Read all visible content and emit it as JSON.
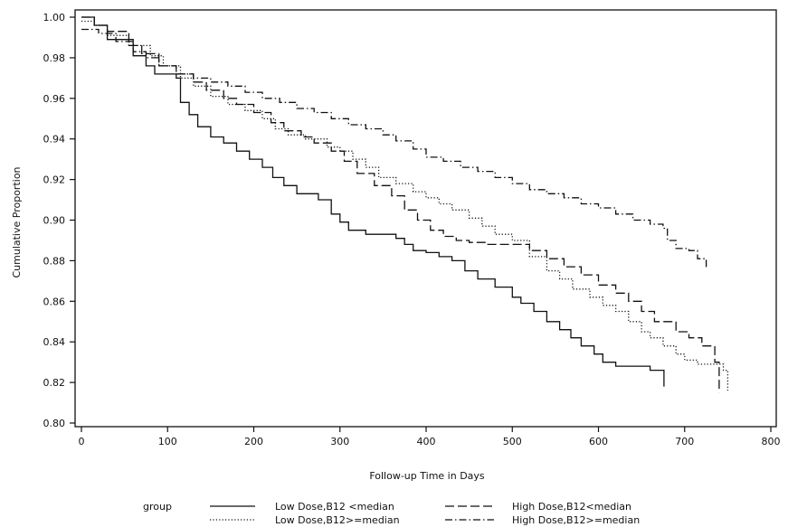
{
  "chart_data": {
    "type": "line",
    "title": "",
    "xlabel": "Follow-up Time in Days",
    "ylabel": "Cumulative Proportion",
    "xlim": [
      0,
      800
    ],
    "ylim": [
      0.8,
      1.0
    ],
    "x_ticks": [
      "0",
      "100",
      "200",
      "300",
      "400",
      "500",
      "600",
      "700",
      "800"
    ],
    "y_ticks": [
      "0.80",
      "0.82",
      "0.84",
      "0.86",
      "0.88",
      "0.90",
      "0.92",
      "0.94",
      "0.96",
      "0.98",
      "1.00"
    ],
    "grid": false,
    "legend": {
      "title": "group",
      "placement": "bottom"
    },
    "series": [
      {
        "name": "Low Dose,B12 <median",
        "style": "solid",
        "points": [
          [
            0,
            1.0
          ],
          [
            15,
            0.996
          ],
          [
            30,
            0.989
          ],
          [
            60,
            0.981
          ],
          [
            75,
            0.976
          ],
          [
            85,
            0.972
          ],
          [
            110,
            0.97
          ],
          [
            115,
            0.958
          ],
          [
            125,
            0.952
          ],
          [
            135,
            0.946
          ],
          [
            150,
            0.941
          ],
          [
            165,
            0.938
          ],
          [
            180,
            0.934
          ],
          [
            195,
            0.93
          ],
          [
            210,
            0.926
          ],
          [
            222,
            0.921
          ],
          [
            235,
            0.917
          ],
          [
            250,
            0.913
          ],
          [
            275,
            0.91
          ],
          [
            290,
            0.903
          ],
          [
            300,
            0.899
          ],
          [
            310,
            0.895
          ],
          [
            330,
            0.893
          ],
          [
            350,
            0.893
          ],
          [
            365,
            0.891
          ],
          [
            375,
            0.888
          ],
          [
            385,
            0.885
          ],
          [
            400,
            0.884
          ],
          [
            415,
            0.882
          ],
          [
            430,
            0.88
          ],
          [
            445,
            0.875
          ],
          [
            460,
            0.871
          ],
          [
            480,
            0.867
          ],
          [
            500,
            0.862
          ],
          [
            510,
            0.859
          ],
          [
            525,
            0.855
          ],
          [
            540,
            0.85
          ],
          [
            555,
            0.846
          ],
          [
            568,
            0.842
          ],
          [
            580,
            0.838
          ],
          [
            595,
            0.834
          ],
          [
            605,
            0.83
          ],
          [
            620,
            0.828
          ],
          [
            645,
            0.828
          ],
          [
            660,
            0.826
          ],
          [
            676,
            0.826
          ],
          [
            676,
            0.818
          ]
        ]
      },
      {
        "name": "Low Dose,B12>=median",
        "style": "dotted",
        "points": [
          [
            0,
            0.998
          ],
          [
            15,
            0.996
          ],
          [
            30,
            0.991
          ],
          [
            55,
            0.986
          ],
          [
            80,
            0.981
          ],
          [
            95,
            0.976
          ],
          [
            115,
            0.97
          ],
          [
            130,
            0.966
          ],
          [
            150,
            0.961
          ],
          [
            170,
            0.957
          ],
          [
            190,
            0.954
          ],
          [
            210,
            0.95
          ],
          [
            225,
            0.945
          ],
          [
            240,
            0.942
          ],
          [
            260,
            0.94
          ],
          [
            285,
            0.936
          ],
          [
            300,
            0.934
          ],
          [
            315,
            0.93
          ],
          [
            330,
            0.926
          ],
          [
            345,
            0.921
          ],
          [
            365,
            0.918
          ],
          [
            385,
            0.914
          ],
          [
            400,
            0.911
          ],
          [
            415,
            0.908
          ],
          [
            430,
            0.905
          ],
          [
            450,
            0.901
          ],
          [
            465,
            0.897
          ],
          [
            480,
            0.893
          ],
          [
            500,
            0.89
          ],
          [
            520,
            0.882
          ],
          [
            540,
            0.875
          ],
          [
            555,
            0.871
          ],
          [
            570,
            0.866
          ],
          [
            590,
            0.862
          ],
          [
            605,
            0.858
          ],
          [
            620,
            0.855
          ],
          [
            635,
            0.85
          ],
          [
            650,
            0.845
          ],
          [
            660,
            0.842
          ],
          [
            675,
            0.838
          ],
          [
            690,
            0.834
          ],
          [
            700,
            0.831
          ],
          [
            715,
            0.829
          ],
          [
            730,
            0.829
          ],
          [
            745,
            0.826
          ],
          [
            750,
            0.826
          ],
          [
            750,
            0.816
          ]
        ]
      },
      {
        "name": "High Dose,B12<median",
        "style": "dashed",
        "points": [
          [
            0,
            1.0
          ],
          [
            15,
            0.996
          ],
          [
            30,
            0.993
          ],
          [
            55,
            0.986
          ],
          [
            70,
            0.982
          ],
          [
            90,
            0.976
          ],
          [
            110,
            0.972
          ],
          [
            130,
            0.968
          ],
          [
            145,
            0.964
          ],
          [
            165,
            0.96
          ],
          [
            180,
            0.957
          ],
          [
            200,
            0.953
          ],
          [
            220,
            0.948
          ],
          [
            235,
            0.944
          ],
          [
            255,
            0.941
          ],
          [
            270,
            0.938
          ],
          [
            290,
            0.934
          ],
          [
            305,
            0.929
          ],
          [
            320,
            0.923
          ],
          [
            340,
            0.917
          ],
          [
            360,
            0.912
          ],
          [
            375,
            0.905
          ],
          [
            390,
            0.9
          ],
          [
            405,
            0.895
          ],
          [
            420,
            0.892
          ],
          [
            435,
            0.89
          ],
          [
            450,
            0.889
          ],
          [
            470,
            0.888
          ],
          [
            500,
            0.888
          ],
          [
            520,
            0.885
          ],
          [
            540,
            0.881
          ],
          [
            560,
            0.877
          ],
          [
            580,
            0.873
          ],
          [
            600,
            0.868
          ],
          [
            620,
            0.864
          ],
          [
            635,
            0.86
          ],
          [
            650,
            0.855
          ],
          [
            665,
            0.85
          ],
          [
            690,
            0.845
          ],
          [
            705,
            0.842
          ],
          [
            720,
            0.838
          ],
          [
            735,
            0.83
          ],
          [
            740,
            0.828
          ],
          [
            740,
            0.815
          ]
        ]
      },
      {
        "name": "High Dose,B12>=median",
        "style": "dashdot",
        "points": [
          [
            0,
            0.994
          ],
          [
            20,
            0.992
          ],
          [
            40,
            0.988
          ],
          [
            60,
            0.983
          ],
          [
            75,
            0.98
          ],
          [
            90,
            0.976
          ],
          [
            110,
            0.972
          ],
          [
            130,
            0.97
          ],
          [
            150,
            0.968
          ],
          [
            170,
            0.966
          ],
          [
            190,
            0.963
          ],
          [
            210,
            0.96
          ],
          [
            230,
            0.958
          ],
          [
            250,
            0.955
          ],
          [
            270,
            0.953
          ],
          [
            290,
            0.95
          ],
          [
            310,
            0.947
          ],
          [
            330,
            0.945
          ],
          [
            350,
            0.942
          ],
          [
            365,
            0.939
          ],
          [
            385,
            0.935
          ],
          [
            400,
            0.931
          ],
          [
            420,
            0.929
          ],
          [
            440,
            0.926
          ],
          [
            460,
            0.924
          ],
          [
            480,
            0.921
          ],
          [
            500,
            0.918
          ],
          [
            520,
            0.915
          ],
          [
            540,
            0.913
          ],
          [
            560,
            0.911
          ],
          [
            580,
            0.908
          ],
          [
            600,
            0.906
          ],
          [
            620,
            0.903
          ],
          [
            640,
            0.9
          ],
          [
            660,
            0.898
          ],
          [
            675,
            0.896
          ],
          [
            680,
            0.89
          ],
          [
            690,
            0.886
          ],
          [
            705,
            0.885
          ],
          [
            715,
            0.881
          ],
          [
            725,
            0.878
          ],
          [
            725,
            0.876
          ]
        ]
      }
    ]
  }
}
